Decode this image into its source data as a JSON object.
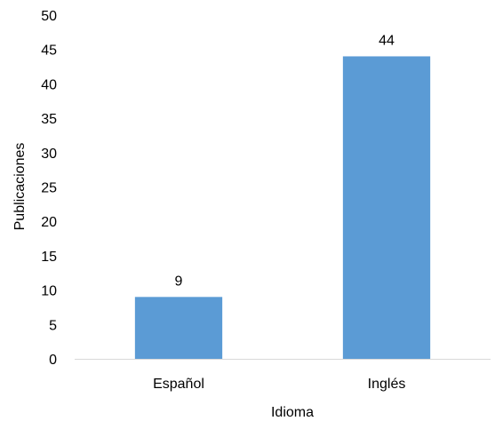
{
  "chart_data": {
    "type": "bar",
    "categories": [
      "Español",
      "Inglés"
    ],
    "values": [
      9,
      44
    ],
    "data_labels": [
      "9",
      "44"
    ],
    "title": "",
    "xlabel": "Idioma",
    "ylabel": "Publicaciones",
    "ylim": [
      0,
      50
    ],
    "yticks": [
      "0",
      "5",
      "10",
      "15",
      "20",
      "25",
      "30",
      "35",
      "40",
      "45",
      "50"
    ],
    "grid": false,
    "legend": "none",
    "bar_color": "#5b9bd5",
    "axis_color": "#d9d9d9"
  }
}
